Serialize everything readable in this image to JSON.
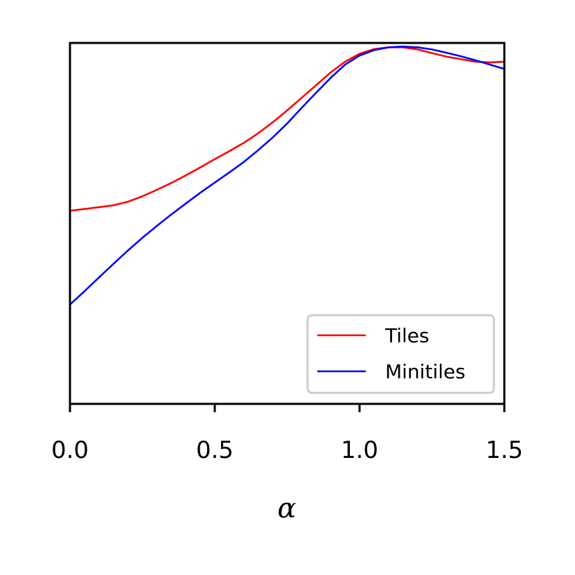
{
  "chart_data": {
    "type": "line",
    "xlabel": "α",
    "ylabel": "",
    "xlim": [
      0.0,
      1.5
    ],
    "ylim": [
      0.0,
      1.0
    ],
    "x_ticks": [
      "0.0",
      "0.5",
      "1.0",
      "1.5"
    ],
    "y_ticks_shown": false,
    "grid": false,
    "legend_position": "lower-right",
    "series": [
      {
        "name": "Tiles",
        "color": "#ff0000",
        "x": [
          0.0,
          0.05,
          0.1,
          0.15,
          0.2,
          0.25,
          0.3,
          0.35,
          0.4,
          0.45,
          0.5,
          0.55,
          0.6,
          0.65,
          0.7,
          0.75,
          0.8,
          0.85,
          0.9,
          0.95,
          1.0,
          1.05,
          1.1,
          1.15,
          1.2,
          1.25,
          1.3,
          1.35,
          1.4,
          1.45,
          1.5
        ],
        "y": [
          0.535,
          0.54,
          0.545,
          0.55,
          0.56,
          0.575,
          0.593,
          0.612,
          0.633,
          0.655,
          0.678,
          0.7,
          0.723,
          0.75,
          0.78,
          0.813,
          0.848,
          0.883,
          0.918,
          0.948,
          0.97,
          0.983,
          0.988,
          0.988,
          0.982,
          0.972,
          0.962,
          0.955,
          0.948,
          0.946,
          0.948
        ]
      },
      {
        "name": "Minitiles",
        "color": "#0000ff",
        "x": [
          0.0,
          0.05,
          0.1,
          0.15,
          0.2,
          0.25,
          0.3,
          0.35,
          0.4,
          0.45,
          0.5,
          0.55,
          0.6,
          0.65,
          0.7,
          0.75,
          0.8,
          0.85,
          0.9,
          0.95,
          1.0,
          1.05,
          1.1,
          1.15,
          1.2,
          1.25,
          1.3,
          1.35,
          1.4,
          1.45,
          1.5
        ],
        "y": [
          0.275,
          0.312,
          0.35,
          0.388,
          0.425,
          0.46,
          0.493,
          0.525,
          0.555,
          0.585,
          0.613,
          0.641,
          0.67,
          0.703,
          0.738,
          0.777,
          0.82,
          0.862,
          0.903,
          0.94,
          0.965,
          0.98,
          0.988,
          0.99,
          0.988,
          0.982,
          0.973,
          0.963,
          0.952,
          0.94,
          0.928
        ]
      }
    ]
  }
}
